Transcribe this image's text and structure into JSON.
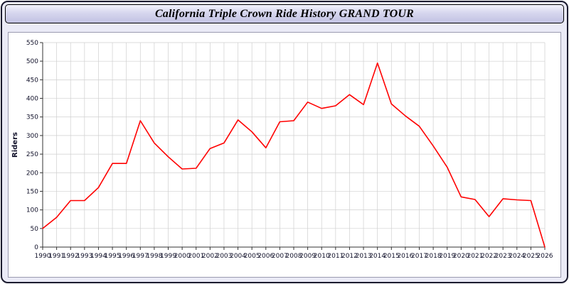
{
  "title": "California Triple Crown Ride History GRAND TOUR",
  "colors": {
    "line": "#ff0000",
    "grid": "#cfcfcf",
    "axis": "#333333",
    "window_bg": "#eaeaf6",
    "panel_bg": "#ffffff"
  },
  "chart_data": {
    "type": "line",
    "title": "California Triple Crown Ride History GRAND TOUR",
    "xlabel": "",
    "ylabel": "Riders",
    "ylim": [
      0,
      550
    ],
    "ytick_step": 50,
    "grid": true,
    "legend_position": "none",
    "x": [
      1990,
      1991,
      1992,
      1993,
      1994,
      1995,
      1996,
      1997,
      1998,
      1999,
      2000,
      2001,
      2002,
      2003,
      2004,
      2005,
      2006,
      2007,
      2008,
      2009,
      2010,
      2011,
      2012,
      2013,
      2014,
      2015,
      2016,
      2017,
      2018,
      2019,
      2020,
      2021,
      2022,
      2023,
      2024,
      2025,
      2026
    ],
    "values": [
      50,
      80,
      125,
      125,
      160,
      225,
      225,
      340,
      280,
      243,
      210,
      212,
      265,
      280,
      342,
      310,
      267,
      337,
      340,
      390,
      373,
      380,
      410,
      383,
      495,
      385,
      353,
      325,
      272,
      215,
      135,
      128,
      82,
      130,
      127,
      125,
      0
    ]
  }
}
